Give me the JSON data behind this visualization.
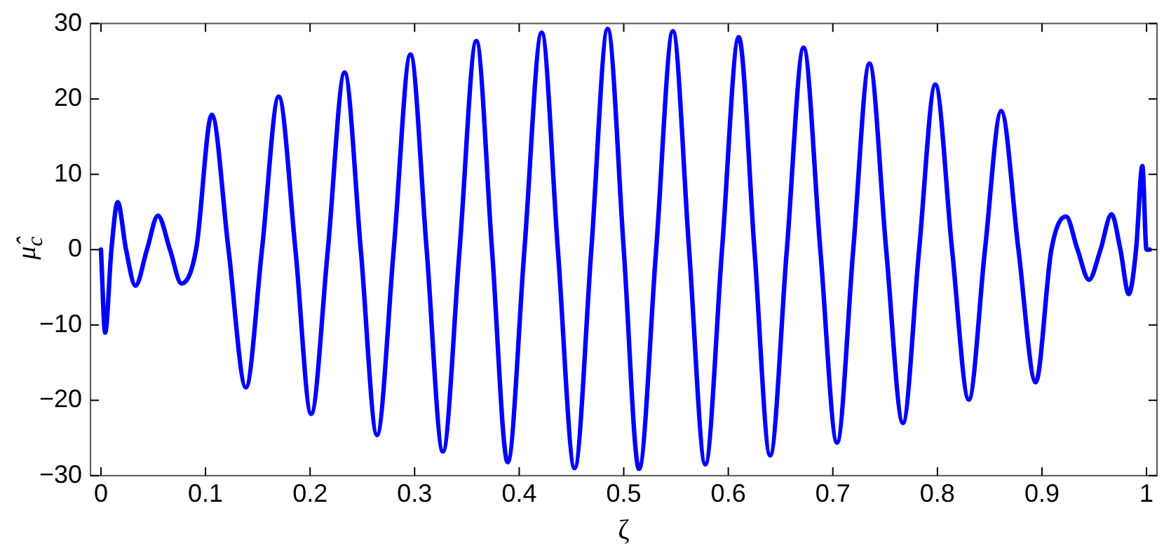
{
  "chart_data": {
    "type": "line",
    "xlabel": "ζ",
    "ylabel": "μ̂$_{c}$",
    "grid": false,
    "legend": false,
    "marker": "none",
    "line_style": "solid",
    "xlim": [
      -0.01,
      1.01
    ],
    "xticks": [
      0,
      0.1,
      0.2,
      0.3,
      0.4,
      0.5,
      0.6,
      0.7,
      0.8,
      0.9,
      1
    ],
    "ylim": [
      -30,
      30
    ],
    "yticks": [
      {
        "value": -30,
        "label": "−30"
      },
      {
        "value": -20,
        "label": "−20"
      },
      {
        "value": -10,
        "label": "−10"
      },
      0,
      10,
      20,
      30
    ],
    "series": [
      {
        "color": "#0000ff",
        "x": [
          0,
          0.004,
          0.01,
          0.016,
          0.024,
          0.033,
          0.044,
          0.0545,
          0.066,
          0.077,
          0.091,
          0.106,
          0.122,
          0.1386,
          0.154,
          0.17,
          0.186,
          0.201,
          0.217,
          0.233,
          0.2485,
          0.264,
          0.28,
          0.296,
          0.3115,
          0.327,
          0.343,
          0.359,
          0.374,
          0.389,
          0.405,
          0.4215,
          0.437,
          0.453,
          0.469,
          0.4846,
          0.5,
          0.5146,
          0.531,
          0.547,
          0.5625,
          0.578,
          0.594,
          0.61,
          0.625,
          0.64,
          0.656,
          0.672,
          0.688,
          0.704,
          0.7195,
          0.735,
          0.751,
          0.767,
          0.7825,
          0.798,
          0.814,
          0.83,
          0.8455,
          0.861,
          0.8775,
          0.894,
          0.909,
          0.923,
          0.934,
          0.945,
          0.956,
          0.9665,
          0.975,
          0.983,
          0.99,
          0.996,
          1.0,
          1.003
        ],
        "values": [
          0,
          -11,
          0,
          6.3,
          0,
          -4.8,
          0,
          4.5,
          0,
          -4.5,
          0,
          17.9,
          0,
          -18.3,
          0,
          20.3,
          0,
          -21.8,
          0,
          23.5,
          0,
          -24.6,
          0,
          25.9,
          0,
          -26.8,
          0,
          27.7,
          0,
          -28.2,
          0,
          28.8,
          0,
          -29.0,
          0,
          29.3,
          0,
          -29.1,
          0,
          29.0,
          0,
          -28.5,
          0,
          28.2,
          0,
          -27.3,
          0,
          26.8,
          0,
          -25.6,
          0,
          24.7,
          0,
          -23.0,
          0,
          21.9,
          0,
          -19.9,
          0,
          18.4,
          0,
          -17.6,
          0,
          4.4,
          0,
          -4.0,
          0,
          4.7,
          0,
          -5.9,
          0,
          11.1,
          0,
          0
        ]
      }
    ]
  }
}
